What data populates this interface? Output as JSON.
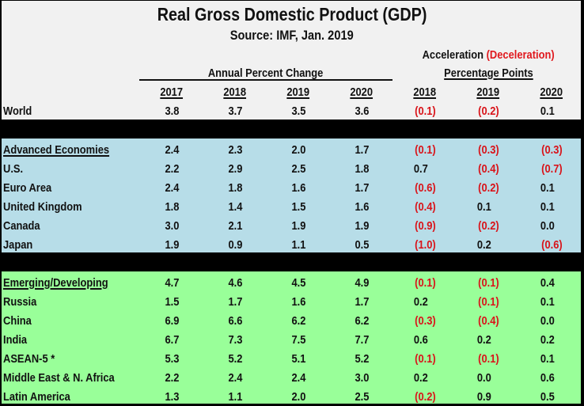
{
  "title": "Real Gross Domestic Product (GDP)",
  "subtitle": "Source:  IMF, Jan. 2019",
  "headers": {
    "acceleration": "Acceleration",
    "deceleration": "(Deceleration)",
    "annual_percent_change": "Annual Percent Change",
    "percentage_points": "Percentage Points",
    "annual_years": [
      "2017",
      "2018",
      "2019",
      "2020"
    ],
    "pp_years": [
      "2018",
      "2019",
      "2020"
    ]
  },
  "colors": {
    "header_bg": "#f1f1f1",
    "advanced_bg": "#b7dde8",
    "emerging_bg": "#99ff99",
    "separator": "#000000",
    "negative_text": "#d9141a"
  },
  "world": {
    "label": "World",
    "values": [
      "3.8",
      "3.7",
      "3.5",
      "3.6",
      "(0.1)",
      "(0.2)",
      "0.1"
    ]
  },
  "advanced": [
    {
      "label": "Advanced Economies",
      "values": [
        "2.4",
        "2.3",
        "2.0",
        "1.7",
        "(0.1)",
        "(0.3)",
        "(0.3)"
      ]
    },
    {
      "label": "U.S.",
      "values": [
        "2.2",
        "2.9",
        "2.5",
        "1.8",
        "0.7",
        "(0.4)",
        "(0.7)"
      ]
    },
    {
      "label": "Euro Area",
      "values": [
        "2.4",
        "1.8",
        "1.6",
        "1.7",
        "(0.6)",
        "(0.2)",
        "0.1"
      ]
    },
    {
      "label": "United Kingdom",
      "values": [
        "1.8",
        "1.4",
        "1.5",
        "1.6",
        "(0.4)",
        "0.1",
        "0.1"
      ]
    },
    {
      "label": "Canada",
      "values": [
        "3.0",
        "2.1",
        "1.9",
        "1.9",
        "(0.9)",
        "(0.2)",
        "0.0"
      ]
    },
    {
      "label": "Japan",
      "values": [
        "1.9",
        "0.9",
        "1.1",
        "0.5",
        "(1.0)",
        "0.2",
        "(0.6)"
      ]
    }
  ],
  "emerging": [
    {
      "label": "Emerging/Developing",
      "values": [
        "4.7",
        "4.6",
        "4.5",
        "4.9",
        "(0.1)",
        "(0.1)",
        "0.4"
      ]
    },
    {
      "label": "Russia",
      "values": [
        "1.5",
        "1.7",
        "1.6",
        "1.7",
        "0.2",
        "(0.1)",
        "0.1"
      ]
    },
    {
      "label": "China",
      "values": [
        "6.9",
        "6.6",
        "6.2",
        "6.2",
        "(0.3)",
        "(0.4)",
        "0.0"
      ]
    },
    {
      "label": "India",
      "values": [
        "6.7",
        "7.3",
        "7.5",
        "7.7",
        "0.6",
        "0.2",
        "0.2"
      ]
    },
    {
      "label": "ASEAN-5 *",
      "values": [
        "5.3",
        "5.2",
        "5.1",
        "5.2",
        "(0.1)",
        "(0.1)",
        "0.1"
      ]
    },
    {
      "label": "Middle East & N. Africa",
      "values": [
        "2.2",
        "2.4",
        "2.4",
        "3.0",
        "0.2",
        "0.0",
        "0.6"
      ]
    },
    {
      "label": "Latin America",
      "values": [
        "1.3",
        "1.1",
        "2.0",
        "2.5",
        "(0.2)",
        "0.9",
        "0.5"
      ]
    }
  ]
}
